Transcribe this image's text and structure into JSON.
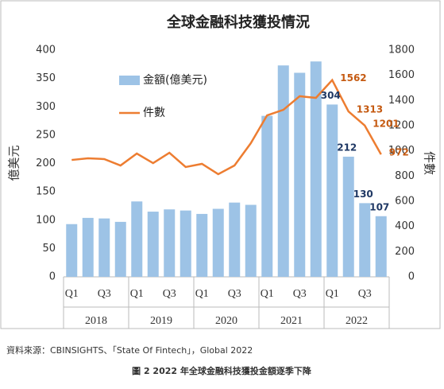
{
  "chart_data": {
    "type": "bar-line",
    "title": "全球金融科技獲投情況",
    "y_label": "億美元",
    "y2_label": "件數",
    "categories": [
      "Q1",
      null,
      "Q3",
      null,
      "Q1",
      null,
      "Q3",
      null,
      "Q1",
      null,
      "Q3",
      null,
      "Q1",
      null,
      "Q3",
      null,
      "Q1",
      null,
      "Q3",
      null
    ],
    "groups": [
      "2018",
      "2019",
      "2020",
      "2021",
      "2022"
    ],
    "series": [
      {
        "name": "金額(億美元)",
        "kind": "bar",
        "color": "#9dc3e6",
        "label_color": "#1f3864",
        "values": [
          93,
          104,
          103,
          97,
          133,
          115,
          119,
          117,
          111,
          120,
          131,
          127,
          284,
          373,
          360,
          380,
          304,
          212,
          130,
          107
        ],
        "value_labels": [
          null,
          null,
          null,
          null,
          null,
          null,
          null,
          null,
          null,
          null,
          null,
          null,
          null,
          null,
          null,
          null,
          "304",
          "212",
          "130",
          "107"
        ]
      },
      {
        "name": "件數",
        "kind": "line",
        "axis": "y2",
        "color": "#ed7d31",
        "label_color": "#c55a11",
        "values": [
          928,
          941,
          935,
          884,
          979,
          903,
          985,
          872,
          897,
          815,
          884,
          1061,
          1282,
          1326,
          1434,
          1421,
          1562,
          1313,
          1201,
          972
        ],
        "value_labels": [
          null,
          null,
          null,
          null,
          null,
          null,
          null,
          null,
          null,
          null,
          null,
          null,
          null,
          null,
          null,
          null,
          "1562",
          "1313",
          "1201",
          "972"
        ]
      }
    ],
    "ylim": [
      0,
      400
    ],
    "yticks": [
      0,
      50,
      100,
      150,
      200,
      250,
      300,
      350,
      400
    ],
    "y2lim": [
      0,
      1800
    ],
    "y2ticks": [
      0,
      200,
      400,
      600,
      800,
      1000,
      1200,
      1400,
      1600,
      1800
    ],
    "source": "資料來源：CBINSIGHTS、「State Of Fintech」，Global 2022",
    "caption": "圖 2  2022 年全球金融科技獲投金額逐季下降"
  }
}
